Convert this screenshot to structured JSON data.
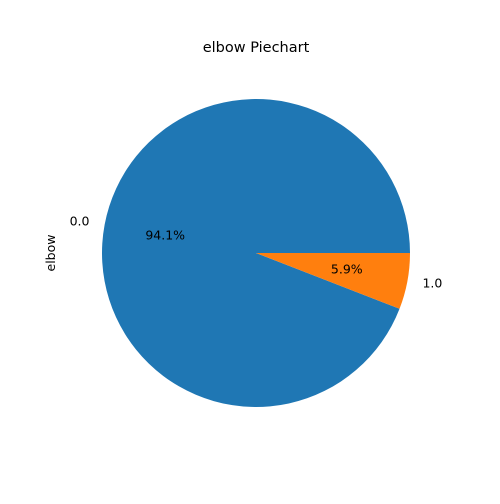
{
  "chart_data": {
    "type": "pie",
    "title": "elbow Piechart",
    "ylabel": "elbow",
    "categories": [
      "0.0",
      "1.0"
    ],
    "values": [
      94.1,
      5.9
    ],
    "percent_labels": [
      "94.1%",
      "5.9%"
    ],
    "colors": [
      "#1f77b4",
      "#ff7f0e"
    ],
    "start_angle_deg": 0,
    "direction": "counterclockwise",
    "legend": "none"
  }
}
